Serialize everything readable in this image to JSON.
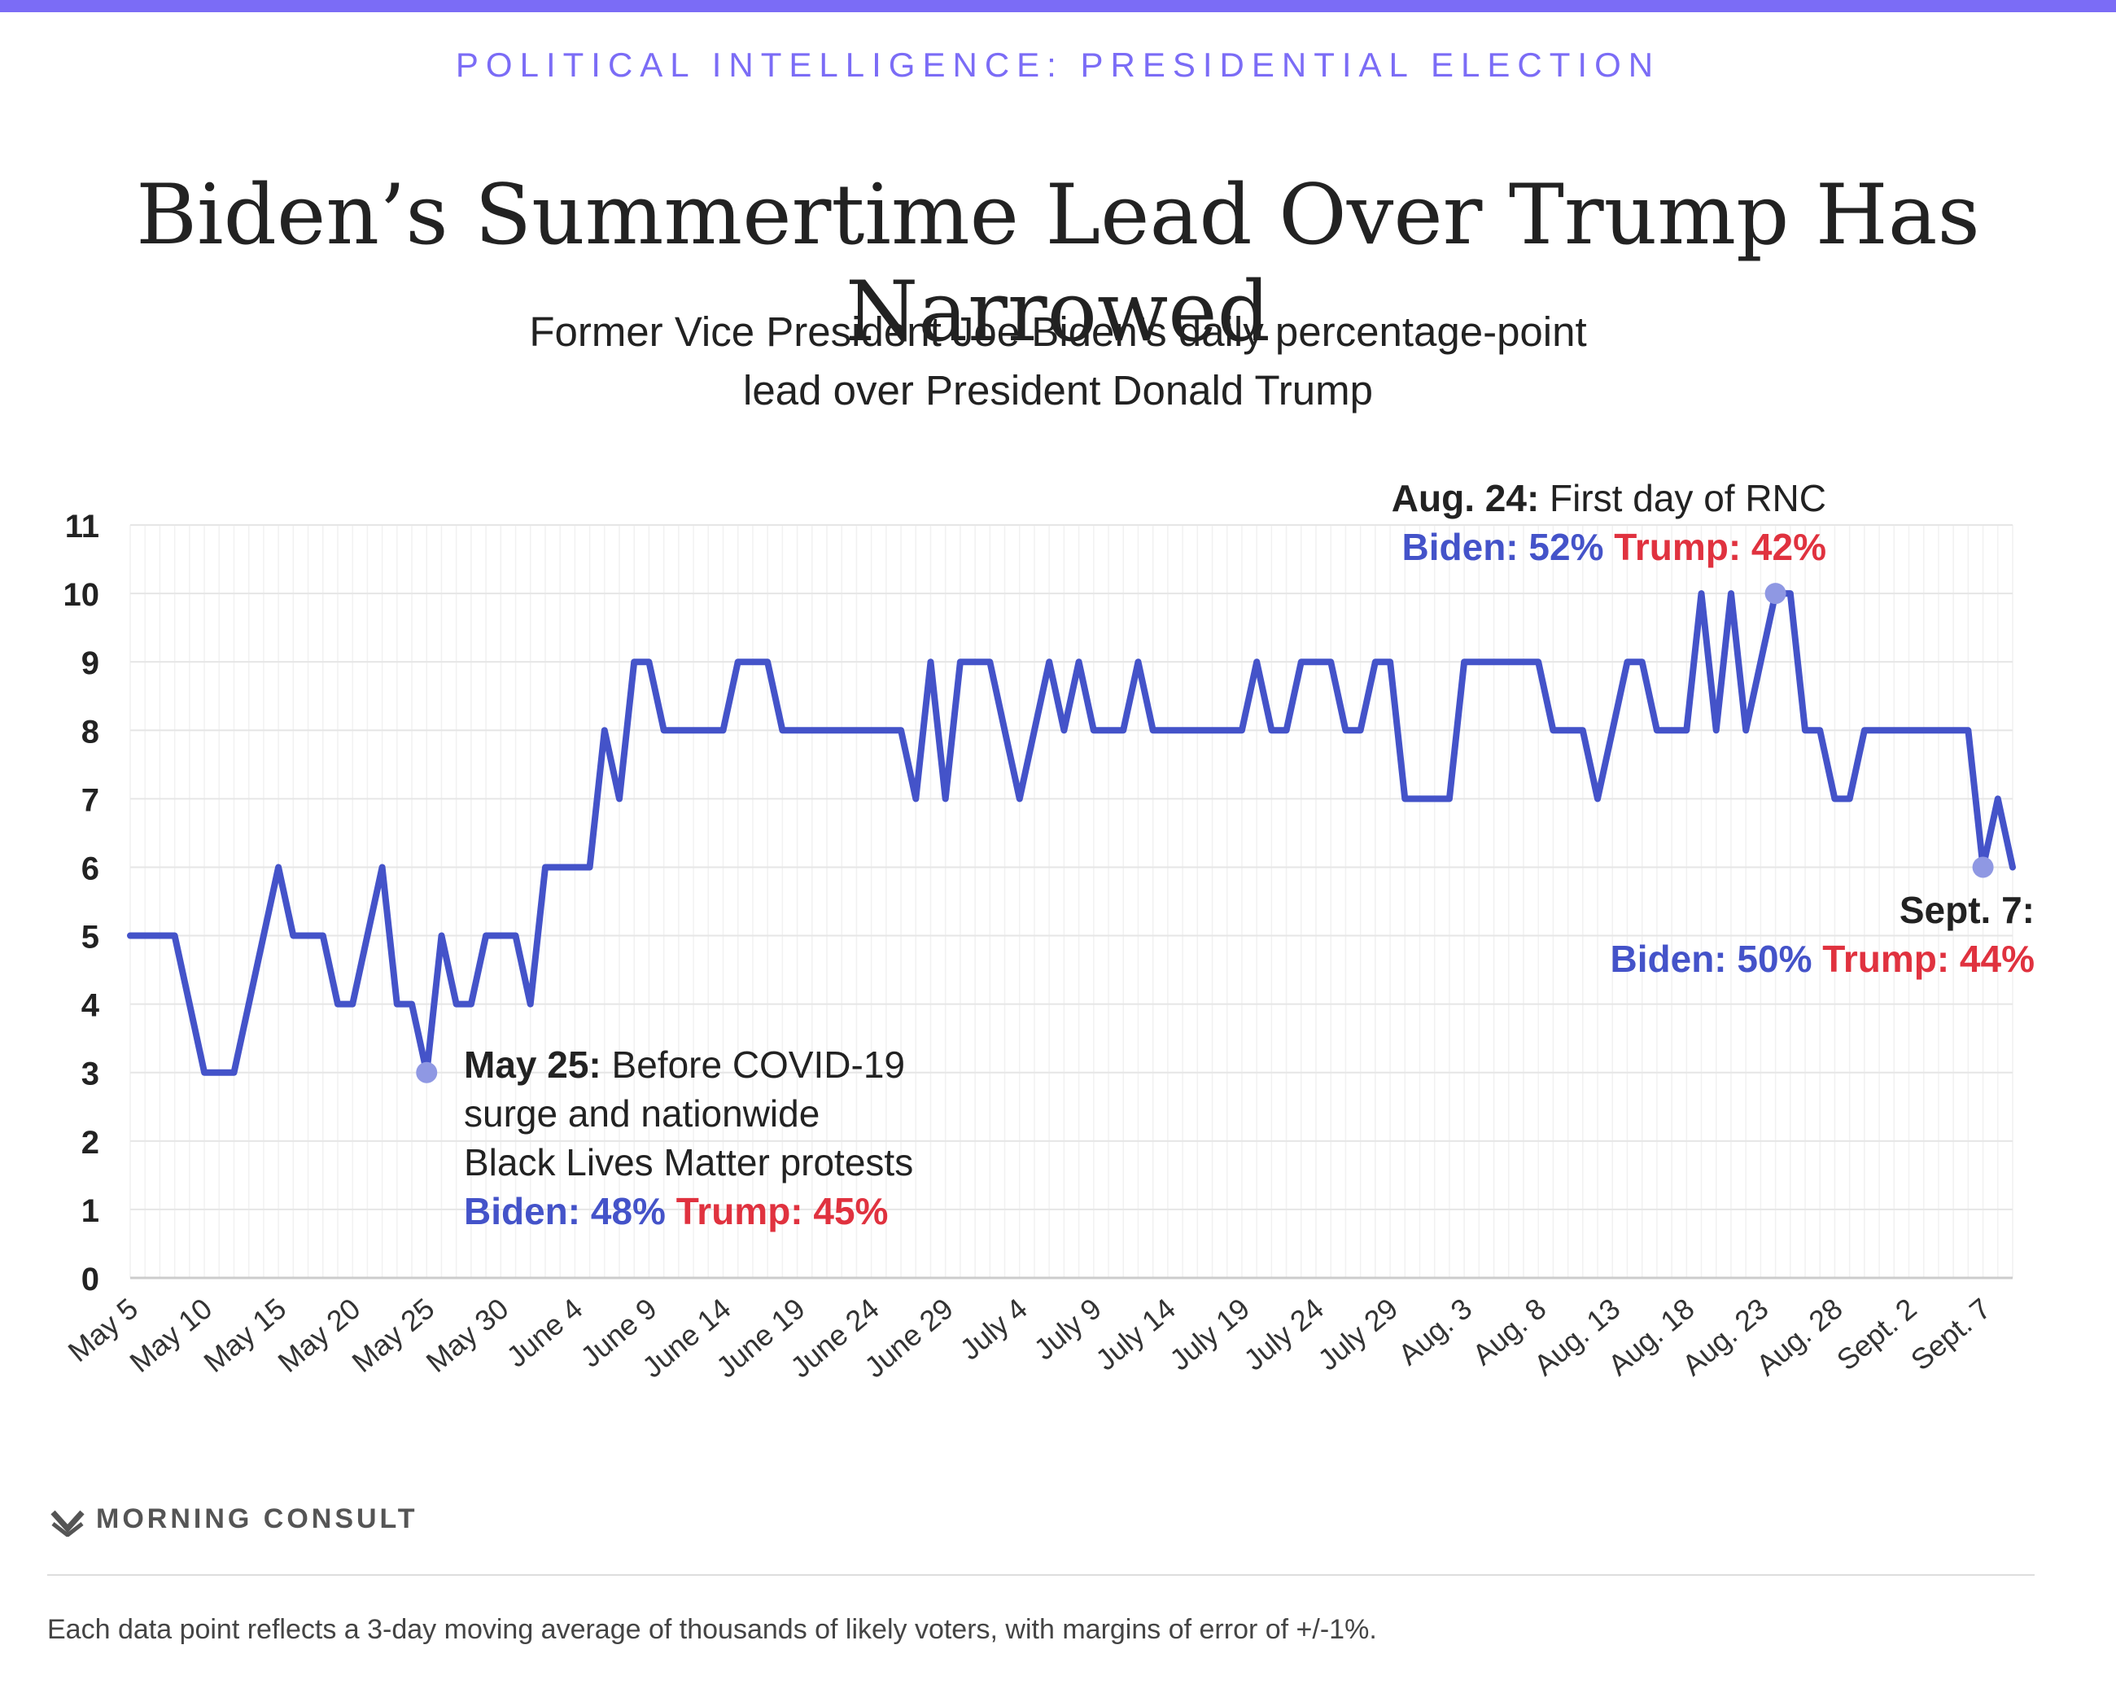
{
  "header": {
    "kicker": "POLITICAL INTELLIGENCE: PRESIDENTIAL ELECTION",
    "title": "Biden’s Summertime Lead Over Trump Has Narrowed",
    "subtitle_line1": "Former Vice President Joe Biden’s daily percentage-point",
    "subtitle_line2": "lead over President Donald Trump"
  },
  "colors": {
    "accent": "#7b6cf6",
    "line": "#4453c9",
    "marker": "#8f98e3",
    "biden": "#4453c9",
    "trump": "#e0323f"
  },
  "annotations": {
    "may25": {
      "date": "May 25:",
      "text1": " Before COVID-19",
      "text2": "surge and nationwide",
      "text3": "Black Lives Matter protests",
      "biden": "Biden: 48%",
      "trump": "Trump: 45%"
    },
    "aug24": {
      "date": "Aug. 24:",
      "text": " First day of RNC",
      "biden": "Biden: 52%",
      "trump": "Trump: 42%"
    },
    "sept7": {
      "date": "Sept. 7:",
      "biden": "Biden: 50%",
      "trump": "Trump: 44%"
    }
  },
  "footer": {
    "brand": "MORNING CONSULT",
    "brand_icon": "morning-consult-logo-icon",
    "note": "Each data point reflects a 3-day moving average of thousands of likely voters, with margins of error of +/-1%."
  },
  "chart_data": {
    "type": "line",
    "title": "Biden’s Summertime Lead Over Trump Has Narrowed",
    "subtitle": "Former Vice President Joe Biden’s daily percentage-point lead over President Donald Trump",
    "xlabel": "",
    "ylabel": "",
    "ylim": [
      0,
      11
    ],
    "yticks": [
      0,
      1,
      2,
      3,
      4,
      5,
      6,
      7,
      8,
      9,
      10,
      11
    ],
    "grid": true,
    "x_start": "May 5",
    "x_end": "Sept. 7",
    "x_tick_labels": [
      "May 5",
      "May 10",
      "May 15",
      "May 20",
      "May 25",
      "May 30",
      "June 4",
      "June 9",
      "June 14",
      "June 19",
      "June 24",
      "June 29",
      "July 4",
      "July 9",
      "July 14",
      "July 19",
      "July 24",
      "July 29",
      "Aug. 3",
      "Aug. 8",
      "Aug. 13",
      "Aug. 18",
      "Aug. 23",
      "Aug. 28",
      "Sept. 2",
      "Sept. 7"
    ],
    "highlighted_points": [
      "May 25",
      "Aug. 24",
      "Sept. 7"
    ],
    "series": [
      {
        "values": [
          5,
          5,
          5,
          5,
          4,
          3,
          3,
          3,
          4,
          5,
          6,
          5,
          5,
          5,
          4,
          4,
          5,
          6,
          4,
          4,
          3,
          5,
          4,
          4,
          5,
          5,
          5,
          4,
          6,
          6,
          6,
          6,
          8,
          7,
          9,
          9,
          8,
          8,
          8,
          8,
          8,
          9,
          9,
          9,
          8,
          8,
          8,
          8,
          8,
          8,
          8,
          8,
          8,
          7,
          9,
          7,
          9,
          9,
          9,
          8,
          7,
          8,
          9,
          8,
          9,
          8,
          8,
          8,
          9,
          8,
          8,
          8,
          8,
          8,
          8,
          8,
          9,
          8,
          8,
          9,
          9,
          9,
          8,
          8,
          9,
          9,
          7,
          7,
          7,
          7,
          9,
          9,
          9,
          9,
          9,
          9,
          8,
          8,
          8,
          7,
          8,
          9,
          9,
          8,
          8,
          8,
          10,
          8,
          10,
          8,
          9,
          10,
          10,
          8,
          8,
          7,
          7,
          8,
          8,
          8,
          8,
          8,
          8,
          8,
          8,
          6,
          7,
          6
        ]
      }
    ]
  }
}
